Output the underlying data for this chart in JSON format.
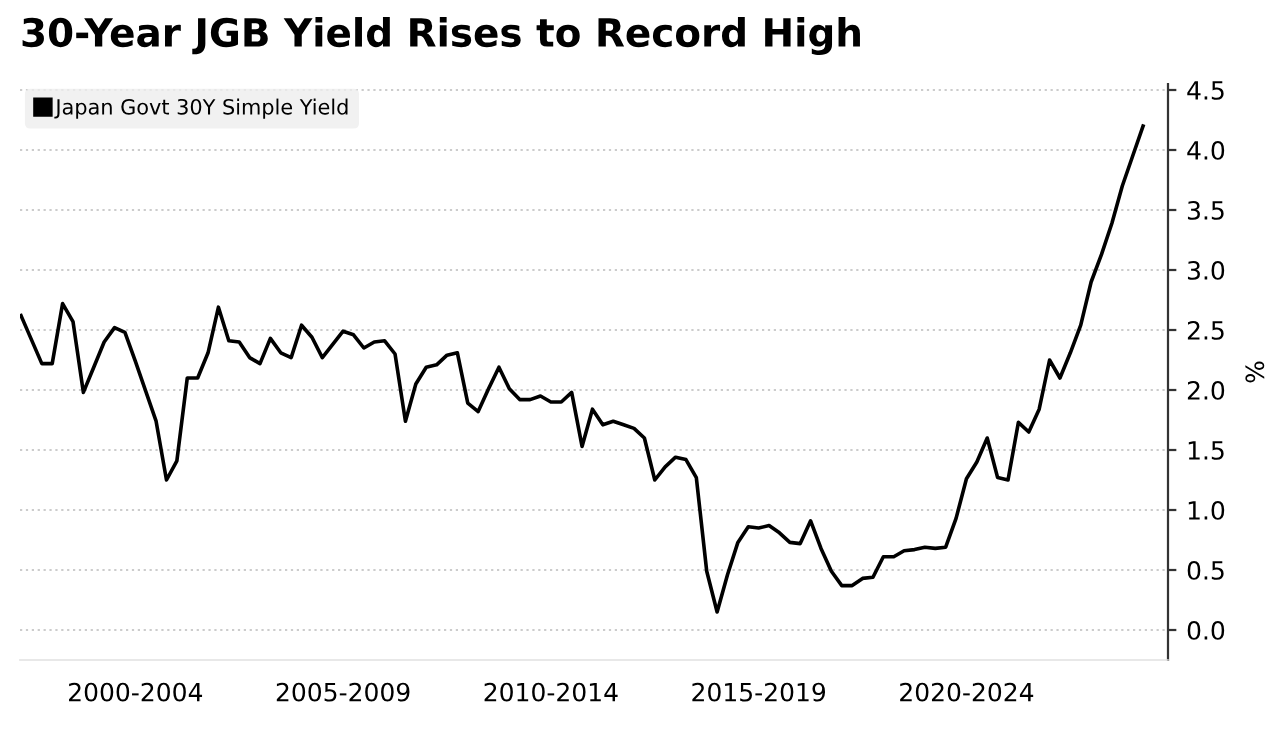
{
  "chart_data": {
    "type": "line",
    "title": "30-Year JGB Yield Rises to Record High",
    "ylabel": "%",
    "categories": [
      null,
      null,
      null,
      null,
      null,
      null,
      null,
      null,
      null,
      null,
      null,
      "2000-2004",
      null,
      null,
      null,
      null,
      null,
      null,
      null,
      null,
      null,
      null,
      null,
      null,
      null,
      null,
      null,
      null,
      null,
      null,
      null,
      "2005-2009",
      null,
      null,
      null,
      null,
      null,
      null,
      null,
      null,
      null,
      null,
      null,
      null,
      null,
      null,
      null,
      null,
      null,
      null,
      null,
      "2010-2014",
      null,
      null,
      null,
      null,
      null,
      null,
      null,
      null,
      null,
      null,
      null,
      null,
      null,
      null,
      null,
      null,
      null,
      null,
      null,
      "2015-2019",
      null,
      null,
      null,
      null,
      null,
      null,
      null,
      null,
      null,
      null,
      null,
      null,
      null,
      null,
      null,
      null,
      null,
      null,
      null,
      "2020-2024",
      null,
      null,
      null,
      null,
      null,
      null,
      null,
      null,
      null,
      null,
      null,
      null,
      null,
      null,
      null,
      null,
      null
    ],
    "series": [
      {
        "name": "Japan Govt 30Y Simple Yield",
        "color": "#000000",
        "values": [
          2.62,
          2.42,
          2.22,
          2.22,
          2.72,
          2.57,
          1.98,
          2.19,
          2.4,
          2.52,
          2.48,
          2.24,
          1.99,
          1.74,
          1.25,
          1.41,
          2.1,
          2.1,
          2.31,
          2.69,
          2.41,
          2.4,
          2.27,
          2.22,
          2.43,
          2.31,
          2.27,
          2.54,
          2.44,
          2.27,
          2.38,
          2.49,
          2.46,
          2.35,
          2.4,
          2.41,
          2.3,
          1.74,
          2.05,
          2.19,
          2.21,
          2.29,
          2.31,
          1.89,
          1.82,
          2.01,
          2.19,
          2.01,
          1.92,
          1.92,
          1.95,
          1.9,
          1.9,
          1.98,
          1.53,
          1.84,
          1.71,
          1.74,
          1.71,
          1.68,
          1.6,
          1.25,
          1.36,
          1.44,
          1.42,
          1.27,
          0.49,
          0.15,
          0.46,
          0.73,
          0.86,
          0.85,
          0.87,
          0.81,
          0.73,
          0.72,
          0.91,
          0.68,
          0.49,
          0.37,
          0.37,
          0.43,
          0.44,
          0.61,
          0.61,
          0.66,
          0.67,
          0.69,
          0.68,
          0.69,
          0.93,
          1.26,
          1.4,
          1.6,
          1.27,
          1.25,
          1.73,
          1.65,
          1.84,
          2.25,
          2.1,
          2.31,
          2.54,
          2.9,
          3.13,
          3.39,
          3.7,
          3.95,
          4.2
        ]
      }
    ],
    "ylim": [
      -0.25,
      4.55
    ],
    "yticks": [
      {
        "value": 0,
        "label": "0.0"
      },
      {
        "value": 0.5,
        "label": "0.5"
      },
      {
        "value": 1,
        "label": "1.0"
      },
      {
        "value": 1.5,
        "label": "1.5"
      },
      {
        "value": 2,
        "label": "2.0"
      },
      {
        "value": 2.5,
        "label": "2.5"
      },
      {
        "value": 3,
        "label": "3.0"
      },
      {
        "value": 3.5,
        "label": "3.5"
      },
      {
        "value": 4,
        "label": "4.0"
      },
      {
        "value": 4.5,
        "label": "4.5"
      }
    ],
    "grid": "y",
    "legend": "top left",
    "marker": "none",
    "line_style": "solid"
  }
}
